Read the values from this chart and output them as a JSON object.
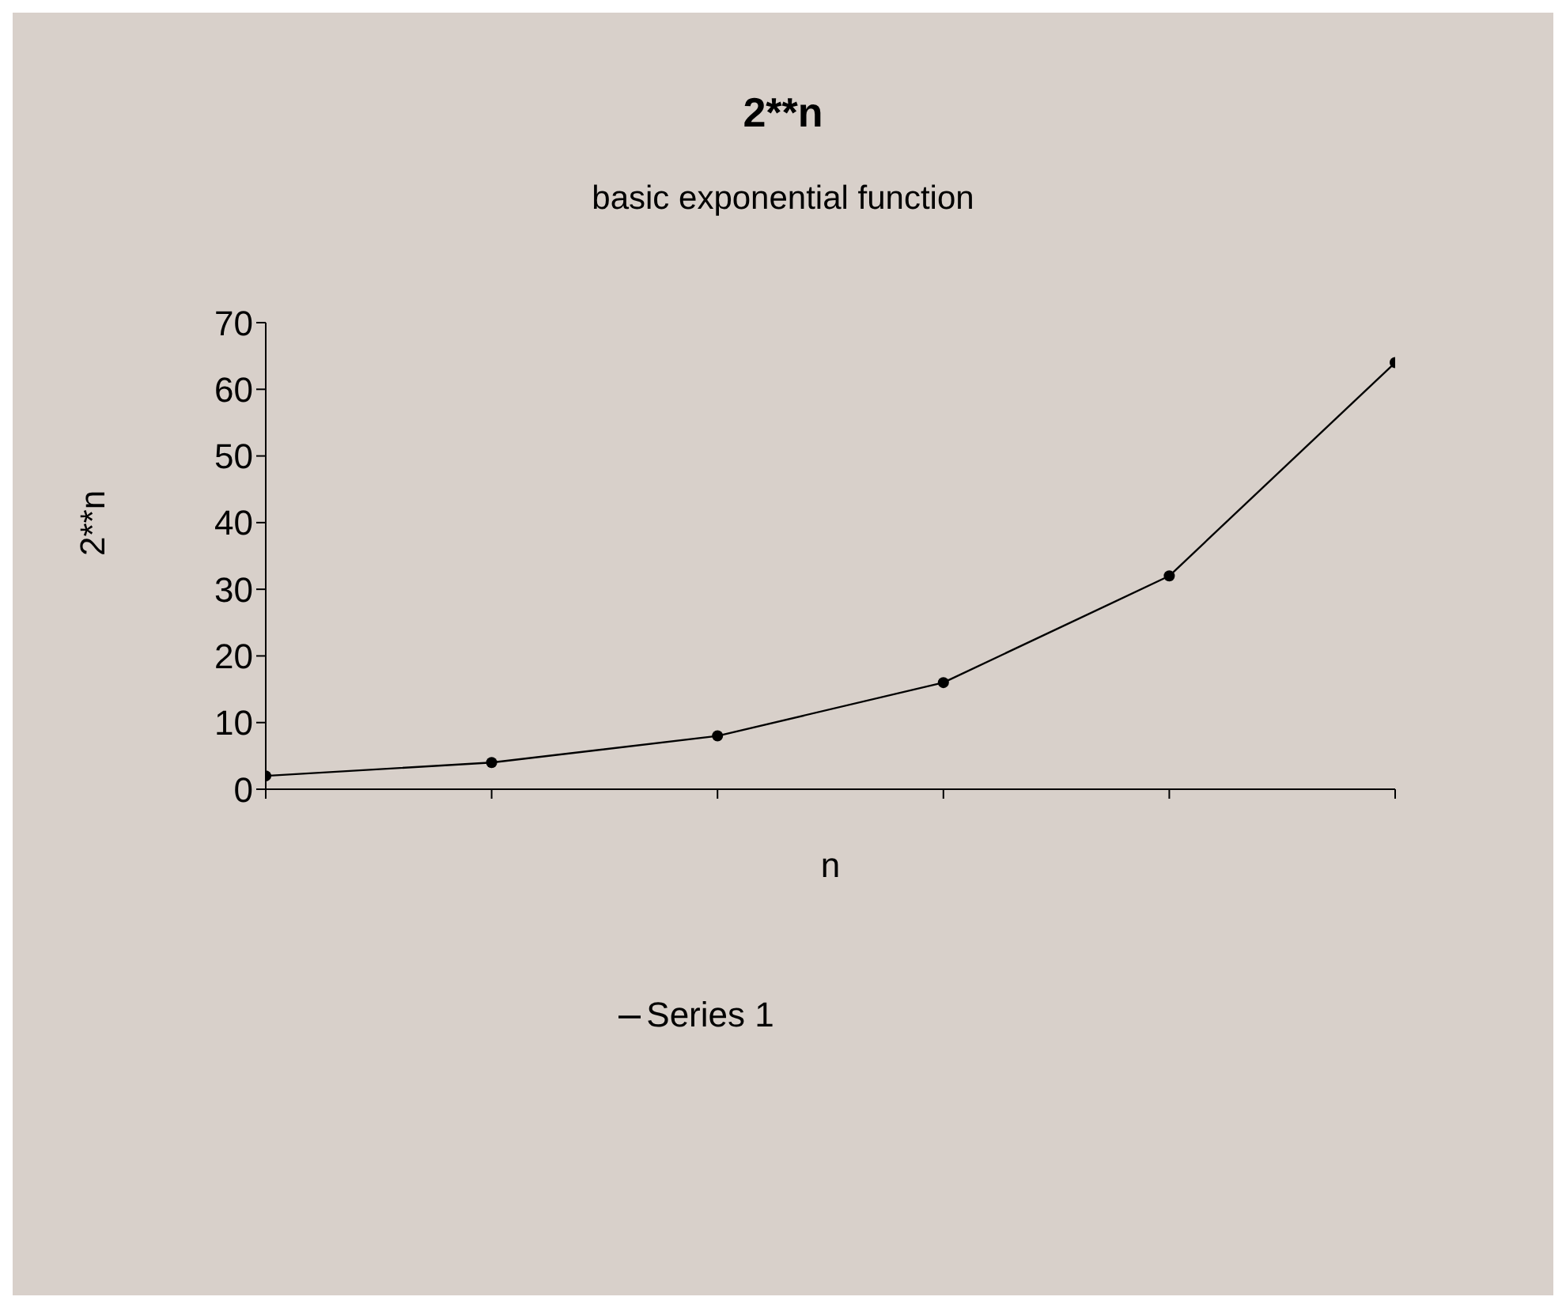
{
  "chart_data": {
    "type": "line",
    "title": "2**n",
    "subtitle": "basic exponential function",
    "xlabel": "n",
    "ylabel": "2**n",
    "categories": [
      null,
      null,
      null,
      null,
      null,
      null
    ],
    "series": [
      {
        "name": "Series 1",
        "color": "#000000",
        "values": [
          2,
          4,
          8,
          16,
          32,
          64
        ]
      }
    ],
    "ylim": [
      0,
      70
    ],
    "yticks": [
      0,
      10,
      20,
      30,
      40,
      50,
      60,
      70
    ],
    "grid": false,
    "legend": "bottom",
    "marker": "circle",
    "line_style": "solid"
  }
}
